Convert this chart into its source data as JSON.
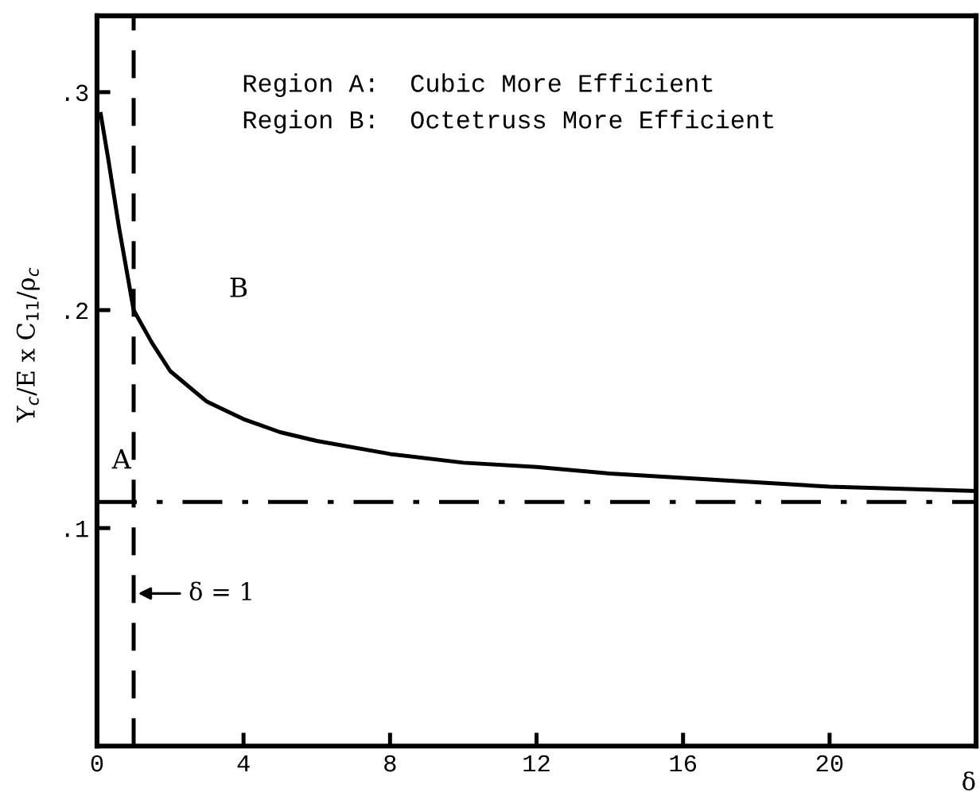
{
  "chart_data": {
    "type": "line",
    "xlabel": "δ",
    "ylabel": "Y$_{c}$/E x C$_{11}$/ρ$_{c}$",
    "x": [
      0.1,
      0.3,
      0.6,
      1.0,
      1.5,
      2,
      3,
      4,
      5,
      6,
      8,
      10,
      12,
      14,
      16,
      18,
      20,
      22,
      24
    ],
    "series": [
      {
        "color": "#000000",
        "values": [
          0.29,
          0.27,
          0.238,
          0.2,
          0.185,
          0.172,
          0.158,
          0.15,
          0.144,
          0.14,
          0.134,
          0.13,
          0.128,
          0.125,
          0.123,
          0.121,
          0.119,
          0.118,
          0.117
        ]
      }
    ],
    "xlim": [
      0,
      24
    ],
    "ylim": [
      0,
      0.335
    ],
    "xticks": [
      0,
      4,
      8,
      12,
      16,
      20
    ],
    "yticks": [
      {
        "value": 0.1,
        "label": ".1"
      },
      {
        "value": 0.2,
        "label": ".2"
      },
      {
        "value": 0.3,
        "label": ".3"
      }
    ],
    "ref_lines": [
      {
        "axis": "y",
        "value": 0.112,
        "line_style": "dashdot",
        "color": "#000000"
      },
      {
        "axis": "x",
        "value": 1,
        "label": "δ = 1",
        "line_style": "dashed",
        "color": "#000000"
      }
    ],
    "annotations": [
      "Region A:  Cubic More Efficient",
      "Region B:  Octetruss More Efficient",
      "A",
      "B"
    ],
    "grid": false,
    "legend": false,
    "marker": "none",
    "line_style": "solid"
  }
}
